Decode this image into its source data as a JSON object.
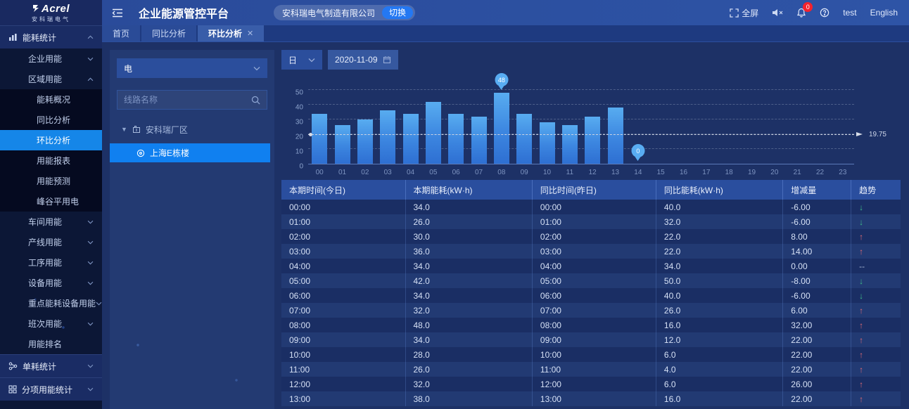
{
  "header": {
    "brand": "Acrel",
    "brand_sub": "安科瑞电气",
    "title": "企业能源管控平台",
    "company": "安科瑞电气制造有限公司",
    "switch_label": "切换",
    "fullscreen_label": "全屏",
    "notification_count": "0",
    "username": "test",
    "language": "English"
  },
  "tabs": [
    {
      "name": "home",
      "label": "首页",
      "active": false,
      "closable": false
    },
    {
      "name": "yoy-analysis",
      "label": "同比分析",
      "active": false,
      "closable": false
    },
    {
      "name": "mom-analysis",
      "label": "环比分析",
      "active": true,
      "closable": true
    }
  ],
  "sidebar": {
    "items": [
      {
        "name": "energy-consumption-stats",
        "label": "能耗统计",
        "level": 1,
        "icon": "bar-chart",
        "chevron": "up"
      },
      {
        "name": "enterprise-energy",
        "label": "企业用能",
        "level": 2,
        "chevron": "down"
      },
      {
        "name": "region-energy",
        "label": "区域用能",
        "level": 2,
        "chevron": "up"
      },
      {
        "name": "energy-overview",
        "label": "能耗概况",
        "level": 3
      },
      {
        "name": "yoy-analysis",
        "label": "同比分析",
        "level": 3
      },
      {
        "name": "mom-analysis",
        "label": "环比分析",
        "level": 3,
        "active": true
      },
      {
        "name": "energy-report",
        "label": "用能报表",
        "level": 3
      },
      {
        "name": "energy-forecast",
        "label": "用能预测",
        "level": 3
      },
      {
        "name": "peak-valley-power",
        "label": "峰谷平用电",
        "level": 3
      },
      {
        "name": "workshop-energy",
        "label": "车间用能",
        "level": 2,
        "chevron": "down"
      },
      {
        "name": "production-line-energy",
        "label": "产线用能",
        "level": 2,
        "chevron": "down"
      },
      {
        "name": "process-energy",
        "label": "工序用能",
        "level": 2,
        "chevron": "down"
      },
      {
        "name": "equipment-energy",
        "label": "设备用能",
        "level": 2,
        "chevron": "down"
      },
      {
        "name": "key-equipment-energy",
        "label": "重点能耗设备用能",
        "level": 2,
        "chevron": "down"
      },
      {
        "name": "shift-energy",
        "label": "班次用能",
        "level": 2,
        "chevron": "down"
      },
      {
        "name": "energy-ranking",
        "label": "用能排名",
        "level": 2
      },
      {
        "name": "unit-consumption-stats",
        "label": "单耗统计",
        "level": 1,
        "icon": "share-nodes",
        "chevron": "down"
      },
      {
        "name": "itemized-energy-stats",
        "label": "分项用能统计",
        "level": 1,
        "icon": "grid",
        "chevron": "down"
      }
    ]
  },
  "filters": {
    "energy_type": "电",
    "search_placeholder": "线路名称",
    "tree": {
      "root_label": "安科瑞厂区",
      "selected_label": "上海E栋楼"
    }
  },
  "toolbar": {
    "period": "日",
    "date": "2020-11-09"
  },
  "chart_data": {
    "type": "bar",
    "title": "",
    "xlabel": "",
    "ylabel": "",
    "x": [
      "00",
      "01",
      "02",
      "03",
      "04",
      "05",
      "06",
      "07",
      "08",
      "09",
      "10",
      "11",
      "12",
      "13",
      "14",
      "15",
      "16",
      "17",
      "18",
      "19",
      "20",
      "21",
      "22",
      "23"
    ],
    "values": [
      34,
      26,
      30,
      36,
      34,
      42,
      34,
      32,
      48,
      34,
      28,
      26,
      32,
      38,
      0,
      null,
      null,
      null,
      null,
      null,
      null,
      null,
      null,
      null
    ],
    "ylim": [
      0,
      50
    ],
    "yticks": [
      0,
      10,
      20,
      30,
      40,
      50
    ],
    "grid": true,
    "average": 19.75,
    "average_label": "19.75",
    "markers": [
      {
        "index": 8,
        "label": "48"
      },
      {
        "index": 14,
        "label": "0"
      }
    ]
  },
  "table": {
    "columns": [
      "本期时间(今日)",
      "本期能耗(kW·h)",
      "同比时间(昨日)",
      "同比能耗(kW·h)",
      "增减量",
      "趋势"
    ],
    "trend_glyphs": {
      "down": "↓",
      "up": "↑",
      "flat": "--"
    },
    "rows": [
      [
        "00:00",
        "34.0",
        "00:00",
        "40.0",
        "-6.00",
        "down"
      ],
      [
        "01:00",
        "26.0",
        "01:00",
        "32.0",
        "-6.00",
        "down"
      ],
      [
        "02:00",
        "30.0",
        "02:00",
        "22.0",
        "8.00",
        "up"
      ],
      [
        "03:00",
        "36.0",
        "03:00",
        "22.0",
        "14.00",
        "up"
      ],
      [
        "04:00",
        "34.0",
        "04:00",
        "34.0",
        "0.00",
        "flat"
      ],
      [
        "05:00",
        "42.0",
        "05:00",
        "50.0",
        "-8.00",
        "down"
      ],
      [
        "06:00",
        "34.0",
        "06:00",
        "40.0",
        "-6.00",
        "down"
      ],
      [
        "07:00",
        "32.0",
        "07:00",
        "26.0",
        "6.00",
        "up"
      ],
      [
        "08:00",
        "48.0",
        "08:00",
        "16.0",
        "32.00",
        "up"
      ],
      [
        "09:00",
        "34.0",
        "09:00",
        "12.0",
        "22.00",
        "up"
      ],
      [
        "10:00",
        "28.0",
        "10:00",
        "6.0",
        "22.00",
        "up"
      ],
      [
        "11:00",
        "26.0",
        "11:00",
        "4.0",
        "22.00",
        "up"
      ],
      [
        "12:00",
        "32.0",
        "12:00",
        "6.0",
        "26.00",
        "up"
      ],
      [
        "13:00",
        "38.0",
        "13:00",
        "16.0",
        "22.00",
        "up"
      ]
    ]
  },
  "colors": {
    "accent": "#1586e8",
    "header_bar": "#2c509f",
    "bar_top": "#58acf0",
    "bar_bottom": "#2e6fd2",
    "trend_up": "#e06c75",
    "trend_down": "#3fbf8a",
    "badge": "#f5222d",
    "average_line": "#ccd3e2"
  }
}
